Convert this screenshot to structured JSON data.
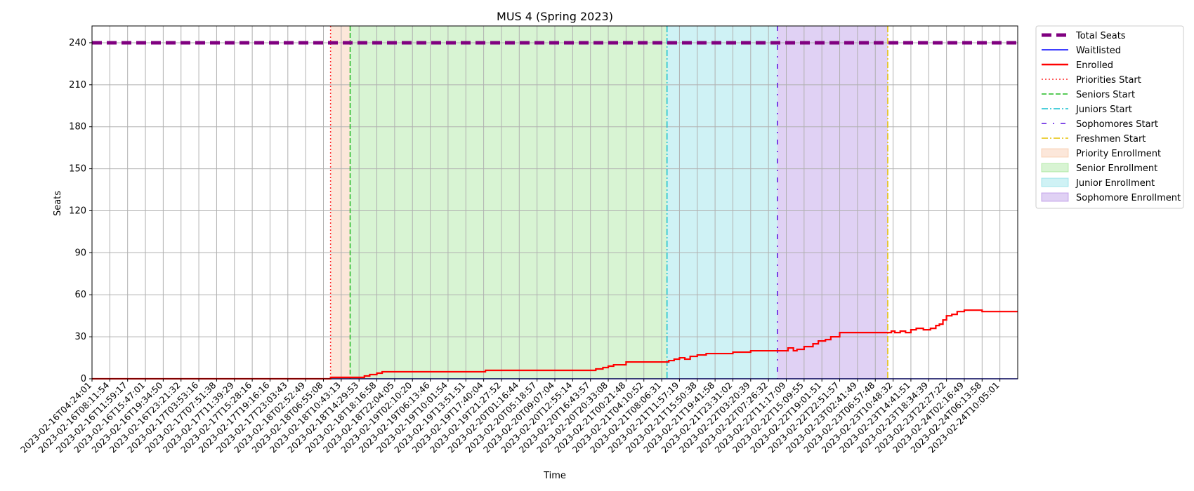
{
  "chart_data": {
    "type": "line",
    "title": "MUS 4 (Spring 2023)",
    "xlabel": "Time",
    "ylabel": "Seats",
    "ylim": [
      0,
      252
    ],
    "yticks": [
      0,
      30,
      60,
      90,
      120,
      150,
      180,
      210,
      240
    ],
    "grid": true,
    "legend_position": "outside-right",
    "x_tick_labels": [
      "2023-02-16T04:24:01",
      "2023-02-16T08:11:54",
      "2023-02-16T11:59:17",
      "2023-02-16T15:47:01",
      "2023-02-16T19:34:50",
      "2023-02-16T23:21:32",
      "2023-02-17T03:53:16",
      "2023-02-17T07:51:38",
      "2023-02-17T11:39:29",
      "2023-02-17T15:28:16",
      "2023-02-17T19:16:16",
      "2023-02-17T23:03:43",
      "2023-02-18T02:52:49",
      "2023-02-18T06:55:08",
      "2023-02-18T10:43:13",
      "2023-02-18T14:29:53",
      "2023-02-18T18:16:58",
      "2023-02-18T22:04:05",
      "2023-02-19T02:10:20",
      "2023-02-19T06:13:46",
      "2023-02-19T10:01:54",
      "2023-02-19T13:51:51",
      "2023-02-19T17:40:04",
      "2023-02-19T21:27:52",
      "2023-02-20T01:16:44",
      "2023-02-20T05:18:57",
      "2023-02-20T09:07:04",
      "2023-02-20T12:55:14",
      "2023-02-20T16:43:57",
      "2023-02-20T20:33:08",
      "2023-02-21T00:21:48",
      "2023-02-21T04:10:52",
      "2023-02-21T08:06:31",
      "2023-02-21T11:57:19",
      "2023-02-21T15:50:38",
      "2023-02-21T19:41:58",
      "2023-02-21T23:31:02",
      "2023-02-22T03:20:39",
      "2023-02-22T07:26:32",
      "2023-02-22T11:17:09",
      "2023-02-22T15:09:55",
      "2023-02-22T19:01:51",
      "2023-02-22T22:51:57",
      "2023-02-23T02:41:49",
      "2023-02-23T06:57:48",
      "2023-02-23T10:48:32",
      "2023-02-23T14:41:51",
      "2023-02-23T18:34:39",
      "2023-02-23T22:27:22",
      "2023-02-24T02:16:49",
      "2023-02-24T06:13:58",
      "2023-02-24T10:05:01"
    ],
    "x_index_range": [
      0,
      52
    ],
    "phases": [
      {
        "name": "Priority Enrollment",
        "start": 13.4,
        "end": 14.5,
        "color": "#f4b183"
      },
      {
        "name": "Senior Enrollment",
        "start": 14.5,
        "end": 32.3,
        "color": "#7fdc6e"
      },
      {
        "name": "Junior Enrollment",
        "start": 32.3,
        "end": 38.5,
        "color": "#5fd3de"
      },
      {
        "name": "Sophomore Enrollment",
        "start": 38.5,
        "end": 44.7,
        "color": "#9966d9"
      }
    ],
    "start_markers": [
      {
        "name": "Priorities Start",
        "x": 13.4,
        "color": "#ff2a2a",
        "style": "dotted"
      },
      {
        "name": "Seniors Start",
        "x": 14.5,
        "color": "#22bb22",
        "style": "dashed"
      },
      {
        "name": "Juniors Start",
        "x": 32.3,
        "color": "#14bfcf",
        "style": "dashdot"
      },
      {
        "name": "Sophomores Start",
        "x": 38.5,
        "color": "#5a10e0",
        "style": "dashdot-sparse"
      },
      {
        "name": "Freshmen Start",
        "x": 44.7,
        "color": "#e5c100",
        "style": "dashdot"
      }
    ],
    "series": [
      {
        "name": "Total Seats",
        "color": "#800080",
        "style": "dashed-thick",
        "x": [
          0,
          52
        ],
        "y": [
          240,
          240
        ]
      },
      {
        "name": "Waitlisted",
        "color": "#0000ff",
        "style": "solid",
        "x": [
          0,
          52
        ],
        "y": [
          0,
          0
        ]
      },
      {
        "name": "Enrolled",
        "color": "#ff0000",
        "style": "solid-thick",
        "x": [
          0,
          13.3,
          13.4,
          14.5,
          15.3,
          15.6,
          16.0,
          16.3,
          22.0,
          22.1,
          28.0,
          28.3,
          28.7,
          29.0,
          29.3,
          30.0,
          32.2,
          32.4,
          32.7,
          33.0,
          33.3,
          33.6,
          34.0,
          34.5,
          35.5,
          36.0,
          36.5,
          37.0,
          38.5,
          38.9,
          39.1,
          39.4,
          39.6,
          40.0,
          40.2,
          40.5,
          40.8,
          41.2,
          41.5,
          42.0,
          42.6,
          43.0,
          43.5,
          44.7,
          44.9,
          45.1,
          45.4,
          45.7,
          46.0,
          46.3,
          46.7,
          47.1,
          47.4,
          47.6,
          47.8,
          48.0,
          48.3,
          48.6,
          49.0,
          49.5,
          50.0,
          52.0
        ],
        "y": [
          0,
          0,
          1,
          1,
          2,
          3,
          4,
          5,
          5,
          6,
          6,
          7,
          8,
          9,
          10,
          12,
          12,
          13,
          14,
          15,
          14,
          16,
          17,
          18,
          18,
          19,
          19,
          20,
          20,
          20,
          22,
          20,
          21,
          23,
          23,
          25,
          27,
          28,
          30,
          33,
          33,
          33,
          33,
          33,
          34,
          33,
          34,
          33,
          35,
          36,
          35,
          36,
          38,
          39,
          42,
          45,
          46,
          48,
          49,
          49,
          48,
          48
        ]
      }
    ]
  }
}
